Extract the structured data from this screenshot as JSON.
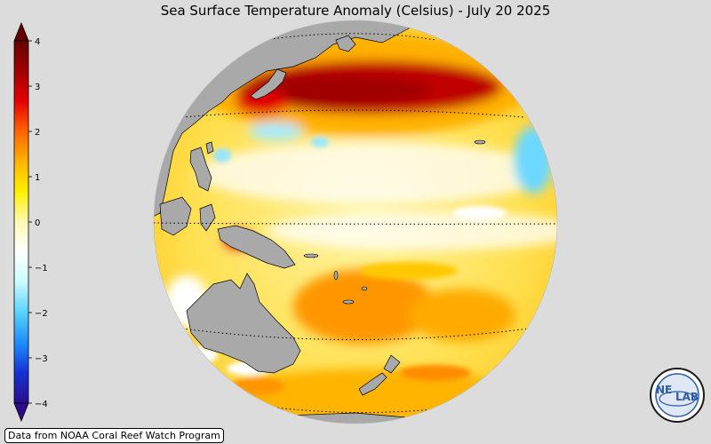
{
  "title": "Sea Surface Temperature Anomaly (Celsius) - July 20 2025",
  "colorbar": {
    "min": -4,
    "max": 4,
    "ticks": [
      "4",
      "3",
      "2",
      "1",
      "0",
      "−1",
      "−2",
      "−3",
      "−4"
    ],
    "colors": [
      "#2a0c8c",
      "#1432d2",
      "#1e8cff",
      "#5ad2ff",
      "#c8fbff",
      "#ffffff",
      "#fff8b4",
      "#fff000",
      "#ffb400",
      "#ff6400",
      "#e60000",
      "#a00000",
      "#640000"
    ]
  },
  "map": {
    "projection": "orthographic",
    "ocean_colors": {
      "strong_warm": "#a80000",
      "warm": "#ff8c00",
      "mild_warm": "#ffd21e",
      "slight_warm": "#fff68c",
      "neutral": "#ffffff",
      "cool": "#5ad2ff",
      "land": "#a9a9a9",
      "graticule": "#000000"
    }
  },
  "credit": "Data from NOAA Coral Reef Watch Program",
  "logo": {
    "text_left": "NE",
    "text_right": "LAB"
  }
}
